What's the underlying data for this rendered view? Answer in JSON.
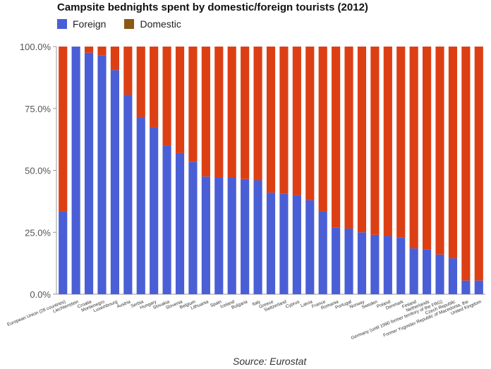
{
  "chart_data": {
    "type": "bar",
    "stacked": true,
    "title": "Campsite bednights spent by domestic/foreign tourists (2012)",
    "source": "Source: Eurostat",
    "y_tick_labels": [
      "0.0%",
      "25.0%",
      "50.0%",
      "75.0%",
      "100.0%"
    ],
    "ylim": [
      0,
      100
    ],
    "legend_position": "top-left",
    "categories": [
      "European Union (28 countries)",
      "Liechtenstein",
      "Croatia",
      "Montenegro",
      "Luxembourg",
      "Austria",
      "Serbia",
      "Hungary",
      "Slovakia",
      "Slovenia",
      "Belgium",
      "Lithuania",
      "Spain",
      "Iceland",
      "Bulgaria",
      "Italy",
      "Greece",
      "Switzerland",
      "Cyprus",
      "Latvia",
      "France",
      "Romania",
      "Portugal",
      "Norway",
      "Sweden",
      "Poland",
      "Denmark",
      "Finland",
      "Netherlands",
      "Germany (until 1990 former territory of the FRG)",
      "Czech Republic",
      "Former Yugoslav Republic of Macedonia, the",
      "United Kingdom"
    ],
    "series": [
      {
        "name": "Foreign",
        "color": "#4a5fd6",
        "values": [
          33.5,
          100,
          97.5,
          96.5,
          90.5,
          80.5,
          71.5,
          67.5,
          60,
          57,
          53.5,
          47.5,
          47,
          47,
          46.5,
          46,
          41,
          40.5,
          40,
          38,
          33.5,
          27,
          26.5,
          25,
          24,
          23.5,
          23,
          18.5,
          18,
          16,
          14.5,
          5.5,
          5.5
        ]
      },
      {
        "name": "Domestic",
        "color": "#dd3f15",
        "values": [
          66.5,
          0,
          2.5,
          3.5,
          9.5,
          19.5,
          28.5,
          32.5,
          40,
          43,
          46.5,
          52.5,
          53,
          53,
          53.5,
          54,
          59,
          59.5,
          60,
          62,
          66.5,
          73,
          73.5,
          75,
          76,
          76.5,
          77,
          81.5,
          82,
          84,
          85.5,
          94.5,
          94.5
        ]
      }
    ],
    "legend_domestic_color": "#8b5a12",
    "axis_color": "#999999",
    "tick_label_color": "#555555"
  }
}
